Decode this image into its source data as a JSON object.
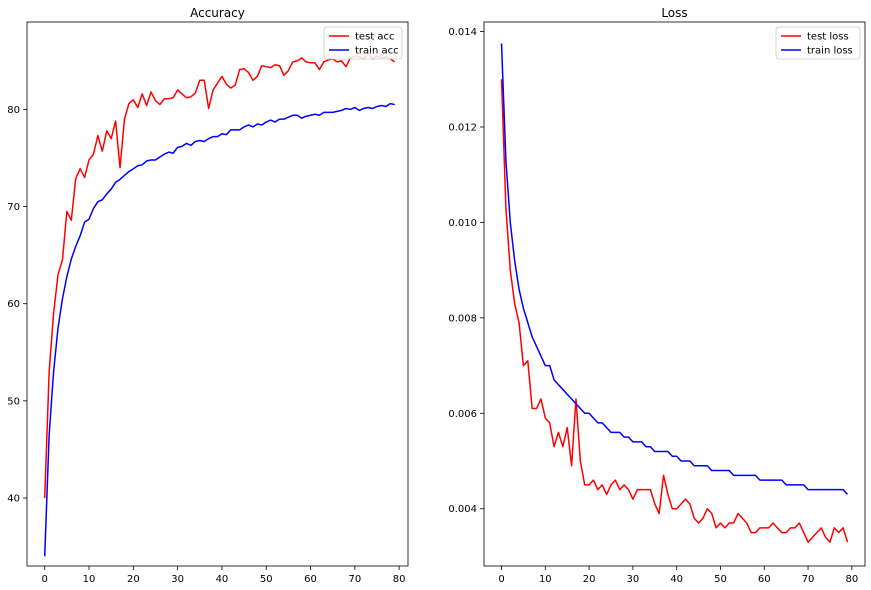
{
  "chart_data": [
    {
      "type": "line",
      "title": "Accuracy",
      "xlabel": "",
      "ylabel": "",
      "xlim": [
        -4,
        82
      ],
      "ylim": [
        33,
        89
      ],
      "xticks": [
        0,
        10,
        20,
        30,
        40,
        50,
        60,
        70,
        80
      ],
      "yticks": [
        40,
        50,
        60,
        70,
        80
      ],
      "grid": false,
      "legend_position": "top-right",
      "series": [
        {
          "name": "test acc",
          "color": "#ff0000",
          "x": [
            0,
            1,
            2,
            3,
            4,
            5,
            6,
            7,
            8,
            9,
            10,
            11,
            12,
            13,
            14,
            15,
            16,
            17,
            18,
            19,
            20,
            21,
            22,
            23,
            24,
            25,
            26,
            27,
            28,
            29,
            30,
            31,
            32,
            33,
            34,
            35,
            36,
            37,
            38,
            39,
            40,
            41,
            42,
            43,
            44,
            45,
            46,
            47,
            48,
            49,
            50,
            51,
            52,
            53,
            54,
            55,
            56,
            57,
            58,
            59,
            60,
            61,
            62,
            63,
            64,
            65,
            66,
            67,
            68,
            69,
            70,
            71,
            72,
            73,
            74,
            75,
            76,
            77,
            78,
            79
          ],
          "values": [
            40.0,
            53.0,
            59.0,
            63.0,
            64.5,
            69.5,
            68.6,
            72.9,
            73.9,
            73.0,
            74.8,
            75.4,
            77.3,
            75.7,
            77.8,
            77.0,
            78.8,
            74.0,
            79.0,
            80.6,
            81.0,
            80.2,
            81.6,
            80.4,
            81.8,
            80.9,
            80.5,
            81.1,
            81.1,
            81.2,
            82.0,
            81.6,
            81.2,
            81.3,
            81.7,
            83.0,
            83.0,
            80.1,
            82.0,
            82.7,
            83.4,
            82.6,
            82.2,
            82.5,
            84.1,
            84.2,
            83.8,
            83.0,
            83.4,
            84.5,
            84.4,
            84.3,
            84.6,
            84.5,
            83.5,
            84.0,
            84.9,
            85.0,
            85.3,
            84.9,
            84.8,
            84.8,
            84.1,
            84.9,
            85.1,
            85.2,
            84.9,
            85.0,
            84.4,
            85.3,
            85.5,
            85.4,
            85.2,
            85.8,
            85.2,
            85.5,
            85.3,
            85.4,
            85.2,
            84.9
          ]
        },
        {
          "name": "train acc",
          "color": "#0000ff",
          "x": [
            0,
            1,
            2,
            3,
            4,
            5,
            6,
            7,
            8,
            9,
            10,
            11,
            12,
            13,
            14,
            15,
            16,
            17,
            18,
            19,
            20,
            21,
            22,
            23,
            24,
            25,
            26,
            27,
            28,
            29,
            30,
            31,
            32,
            33,
            34,
            35,
            36,
            37,
            38,
            39,
            40,
            41,
            42,
            43,
            44,
            45,
            46,
            47,
            48,
            49,
            50,
            51,
            52,
            53,
            54,
            55,
            56,
            57,
            58,
            59,
            60,
            61,
            62,
            63,
            64,
            65,
            66,
            67,
            68,
            69,
            70,
            71,
            72,
            73,
            74,
            75,
            76,
            77,
            78,
            79
          ],
          "values": [
            34.0,
            46.5,
            53.0,
            57.5,
            60.5,
            62.8,
            64.6,
            65.9,
            67.0,
            68.4,
            68.7,
            69.8,
            70.5,
            70.7,
            71.3,
            71.8,
            72.5,
            72.8,
            73.2,
            73.6,
            73.9,
            74.2,
            74.3,
            74.7,
            74.8,
            74.8,
            75.1,
            75.4,
            75.6,
            75.5,
            76.1,
            76.2,
            76.5,
            76.3,
            76.7,
            76.8,
            76.7,
            77.0,
            77.2,
            77.2,
            77.5,
            77.4,
            77.9,
            77.9,
            77.9,
            78.2,
            78.4,
            78.2,
            78.5,
            78.4,
            78.7,
            78.9,
            78.7,
            79.0,
            79.0,
            79.2,
            79.4,
            79.4,
            79.1,
            79.3,
            79.4,
            79.5,
            79.4,
            79.7,
            79.7,
            79.7,
            79.8,
            79.9,
            80.1,
            80.0,
            80.2,
            79.9,
            80.1,
            80.2,
            80.1,
            80.3,
            80.4,
            80.3,
            80.6,
            80.5
          ]
        }
      ]
    },
    {
      "type": "line",
      "title": "Loss",
      "xlabel": "",
      "ylabel": "",
      "xlim": [
        -4,
        83
      ],
      "ylim": [
        0.0028,
        0.0142
      ],
      "xticks": [
        0,
        10,
        20,
        30,
        40,
        50,
        60,
        70,
        80
      ],
      "yticks": [
        0.004,
        0.006,
        0.008,
        0.01,
        0.012,
        0.014
      ],
      "ytick_labels": [
        "0.004",
        "0.006",
        "0.008",
        "0.010",
        "0.012",
        "0.014"
      ],
      "grid": false,
      "legend_position": "top-right",
      "series": [
        {
          "name": "test loss",
          "color": "#ff0000",
          "x": [
            0,
            1,
            2,
            3,
            4,
            5,
            6,
            7,
            8,
            9,
            10,
            11,
            12,
            13,
            14,
            15,
            16,
            17,
            18,
            19,
            20,
            21,
            22,
            23,
            24,
            25,
            26,
            27,
            28,
            29,
            30,
            31,
            32,
            33,
            34,
            35,
            36,
            37,
            38,
            39,
            40,
            41,
            42,
            43,
            44,
            45,
            46,
            47,
            48,
            49,
            50,
            51,
            52,
            53,
            54,
            55,
            56,
            57,
            58,
            59,
            60,
            61,
            62,
            63,
            64,
            65,
            66,
            67,
            68,
            69,
            70,
            71,
            72,
            73,
            74,
            75,
            76,
            77,
            78,
            79
          ],
          "values": [
            0.013,
            0.0103,
            0.009,
            0.0083,
            0.0079,
            0.007,
            0.0071,
            0.0061,
            0.0061,
            0.0063,
            0.0059,
            0.0058,
            0.0053,
            0.0056,
            0.0053,
            0.0057,
            0.0049,
            0.0063,
            0.005,
            0.0045,
            0.0045,
            0.0046,
            0.0044,
            0.0045,
            0.0043,
            0.0045,
            0.0046,
            0.0044,
            0.0045,
            0.0044,
            0.0042,
            0.0044,
            0.0044,
            0.0044,
            0.0044,
            0.0041,
            0.0039,
            0.0047,
            0.0043,
            0.004,
            0.004,
            0.0041,
            0.0042,
            0.0041,
            0.0038,
            0.0037,
            0.0038,
            0.004,
            0.0039,
            0.0036,
            0.0037,
            0.0036,
            0.0037,
            0.0037,
            0.0039,
            0.0038,
            0.0037,
            0.0035,
            0.0035,
            0.0036,
            0.0036,
            0.0036,
            0.0037,
            0.0036,
            0.0035,
            0.0035,
            0.0036,
            0.0036,
            0.0037,
            0.0035,
            0.0033,
            0.0034,
            0.0035,
            0.0036,
            0.0034,
            0.0033,
            0.0036,
            0.0035,
            0.0036,
            0.0033
          ]
        },
        {
          "name": "train loss",
          "color": "#0000ff",
          "x": [
            0,
            1,
            2,
            3,
            4,
            5,
            6,
            7,
            8,
            9,
            10,
            11,
            12,
            13,
            14,
            15,
            16,
            17,
            18,
            19,
            20,
            21,
            22,
            23,
            24,
            25,
            26,
            27,
            28,
            29,
            30,
            31,
            32,
            33,
            34,
            35,
            36,
            37,
            38,
            39,
            40,
            41,
            42,
            43,
            44,
            45,
            46,
            47,
            48,
            49,
            50,
            51,
            52,
            53,
            54,
            55,
            56,
            57,
            58,
            59,
            60,
            61,
            62,
            63,
            64,
            65,
            66,
            67,
            68,
            69,
            70,
            71,
            72,
            73,
            74,
            75,
            76,
            77,
            78,
            79
          ],
          "values": [
            0.01375,
            0.0113,
            0.01,
            0.0092,
            0.0086,
            0.0082,
            0.0079,
            0.0076,
            0.0074,
            0.0072,
            0.007,
            0.007,
            0.0067,
            0.0066,
            0.0065,
            0.0064,
            0.0063,
            0.0062,
            0.0061,
            0.006,
            0.006,
            0.0059,
            0.0058,
            0.0058,
            0.0057,
            0.0056,
            0.0056,
            0.0056,
            0.0055,
            0.0055,
            0.0054,
            0.0054,
            0.0054,
            0.0053,
            0.0053,
            0.0052,
            0.0052,
            0.0052,
            0.0052,
            0.0051,
            0.0051,
            0.005,
            0.005,
            0.005,
            0.0049,
            0.0049,
            0.0049,
            0.0049,
            0.0048,
            0.0048,
            0.0048,
            0.0048,
            0.0048,
            0.0047,
            0.0047,
            0.0047,
            0.0047,
            0.0047,
            0.0047,
            0.0046,
            0.0046,
            0.0046,
            0.0046,
            0.0046,
            0.0046,
            0.0045,
            0.0045,
            0.0045,
            0.0045,
            0.0045,
            0.0044,
            0.0044,
            0.0044,
            0.0044,
            0.0044,
            0.0044,
            0.0044,
            0.0044,
            0.0044,
            0.0043
          ]
        }
      ]
    }
  ]
}
